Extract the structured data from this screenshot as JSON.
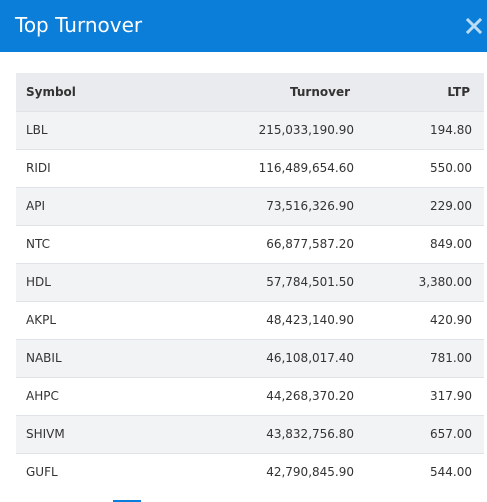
{
  "modal": {
    "title": "Top Turnover",
    "close_icon": "close-icon",
    "accent_color": "#0a7ed8"
  },
  "table": {
    "columns": [
      "Symbol",
      "Turnover",
      "LTP"
    ],
    "rows": [
      {
        "symbol": "LBL",
        "turnover": "215,033,190.90",
        "ltp": "194.80"
      },
      {
        "symbol": "RIDI",
        "turnover": "116,489,654.60",
        "ltp": "550.00"
      },
      {
        "symbol": "API",
        "turnover": "73,516,326.90",
        "ltp": "229.00"
      },
      {
        "symbol": "NTC",
        "turnover": "66,877,587.20",
        "ltp": "849.00"
      },
      {
        "symbol": "HDL",
        "turnover": "57,784,501.50",
        "ltp": "3,380.00"
      },
      {
        "symbol": "AKPL",
        "turnover": "48,423,140.90",
        "ltp": "420.90"
      },
      {
        "symbol": "NABIL",
        "turnover": "46,108,017.40",
        "ltp": "781.00"
      },
      {
        "symbol": "AHPC",
        "turnover": "44,268,370.20",
        "ltp": "317.90"
      },
      {
        "symbol": "SHIVM",
        "turnover": "43,832,756.80",
        "ltp": "657.00"
      },
      {
        "symbol": "GUFL",
        "turnover": "42,790,845.90",
        "ltp": "544.00"
      }
    ]
  }
}
